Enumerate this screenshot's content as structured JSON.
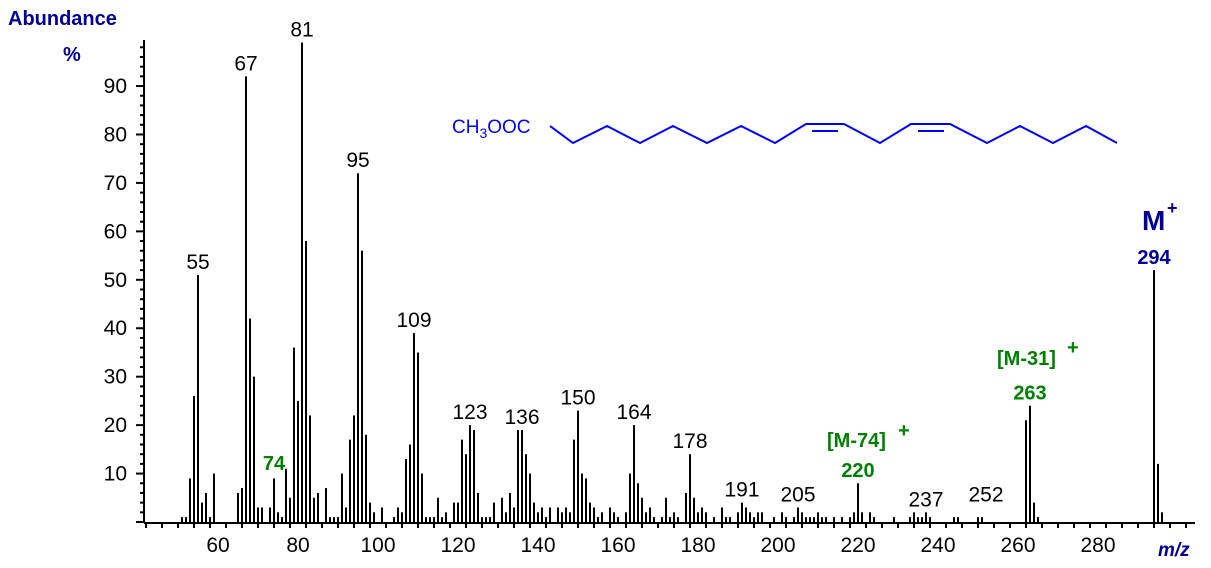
{
  "chart_data": {
    "type": "bar",
    "title": "",
    "xlabel": "m/z",
    "ylabel": "Abundance %",
    "xlim": [
      40,
      300
    ],
    "ylim": [
      0,
      100
    ],
    "x_ticks": [
      60,
      80,
      100,
      120,
      140,
      160,
      180,
      200,
      220,
      240,
      260,
      280
    ],
    "y_ticks": [
      10,
      20,
      30,
      40,
      50,
      60,
      70,
      80,
      90
    ],
    "grid": false,
    "peaks": [
      [
        51,
        1
      ],
      [
        52,
        1
      ],
      [
        53,
        9
      ],
      [
        54,
        26
      ],
      [
        55,
        51
      ],
      [
        56,
        4
      ],
      [
        57,
        6
      ],
      [
        58,
        1
      ],
      [
        59,
        10
      ],
      [
        65,
        6
      ],
      [
        66,
        7
      ],
      [
        67,
        92
      ],
      [
        68,
        42
      ],
      [
        69,
        30
      ],
      [
        70,
        3
      ],
      [
        71,
        3
      ],
      [
        73,
        3
      ],
      [
        74,
        9
      ],
      [
        75,
        2
      ],
      [
        76,
        1
      ],
      [
        77,
        11
      ],
      [
        78,
        5
      ],
      [
        79,
        36
      ],
      [
        80,
        25
      ],
      [
        81,
        99
      ],
      [
        82,
        58
      ],
      [
        83,
        22
      ],
      [
        84,
        5
      ],
      [
        85,
        6
      ],
      [
        87,
        7
      ],
      [
        88,
        1
      ],
      [
        89,
        1
      ],
      [
        90,
        1
      ],
      [
        91,
        10
      ],
      [
        92,
        3
      ],
      [
        93,
        17
      ],
      [
        94,
        22
      ],
      [
        95,
        72
      ],
      [
        96,
        56
      ],
      [
        97,
        18
      ],
      [
        98,
        4
      ],
      [
        99,
        2
      ],
      [
        101,
        3
      ],
      [
        104,
        1
      ],
      [
        105,
        3
      ],
      [
        106,
        2
      ],
      [
        107,
        13
      ],
      [
        108,
        16
      ],
      [
        109,
        39
      ],
      [
        110,
        35
      ],
      [
        111,
        10
      ],
      [
        112,
        1
      ],
      [
        113,
        1
      ],
      [
        114,
        1
      ],
      [
        115,
        5
      ],
      [
        116,
        1
      ],
      [
        117,
        2
      ],
      [
        119,
        4
      ],
      [
        120,
        4
      ],
      [
        121,
        17
      ],
      [
        122,
        14
      ],
      [
        123,
        20
      ],
      [
        124,
        19
      ],
      [
        125,
        6
      ],
      [
        126,
        1
      ],
      [
        127,
        1
      ],
      [
        128,
        1
      ],
      [
        129,
        4
      ],
      [
        131,
        5
      ],
      [
        132,
        2
      ],
      [
        133,
        6
      ],
      [
        134,
        3
      ],
      [
        135,
        19
      ],
      [
        136,
        19
      ],
      [
        137,
        14
      ],
      [
        138,
        10
      ],
      [
        139,
        4
      ],
      [
        140,
        2
      ],
      [
        141,
        3
      ],
      [
        142,
        1
      ],
      [
        143,
        3
      ],
      [
        145,
        3
      ],
      [
        146,
        2
      ],
      [
        147,
        3
      ],
      [
        148,
        2
      ],
      [
        149,
        17
      ],
      [
        150,
        23
      ],
      [
        151,
        10
      ],
      [
        152,
        9
      ],
      [
        153,
        4
      ],
      [
        154,
        3
      ],
      [
        155,
        1
      ],
      [
        156,
        2
      ],
      [
        158,
        3
      ],
      [
        159,
        2
      ],
      [
        160,
        1
      ],
      [
        162,
        2
      ],
      [
        163,
        10
      ],
      [
        164,
        20
      ],
      [
        165,
        8
      ],
      [
        166,
        5
      ],
      [
        167,
        2
      ],
      [
        168,
        3
      ],
      [
        169,
        1
      ],
      [
        171,
        1
      ],
      [
        172,
        5
      ],
      [
        173,
        1
      ],
      [
        174,
        2
      ],
      [
        175,
        1
      ],
      [
        177,
        6
      ],
      [
        178,
        14
      ],
      [
        179,
        5
      ],
      [
        180,
        2
      ],
      [
        181,
        3
      ],
      [
        182,
        2
      ],
      [
        184,
        1
      ],
      [
        186,
        3
      ],
      [
        187,
        1
      ],
      [
        188,
        1
      ],
      [
        190,
        2
      ],
      [
        191,
        4
      ],
      [
        192,
        3
      ],
      [
        193,
        2
      ],
      [
        194,
        1
      ],
      [
        195,
        2
      ],
      [
        196,
        2
      ],
      [
        199,
        1
      ],
      [
        201,
        2
      ],
      [
        202,
        1
      ],
      [
        204,
        1
      ],
      [
        205,
        3
      ],
      [
        206,
        2
      ],
      [
        207,
        1
      ],
      [
        208,
        1
      ],
      [
        209,
        1
      ],
      [
        210,
        2
      ],
      [
        211,
        1
      ],
      [
        212,
        1
      ],
      [
        214,
        1
      ],
      [
        216,
        1
      ],
      [
        218,
        1
      ],
      [
        219,
        2
      ],
      [
        220,
        8
      ],
      [
        221,
        2
      ],
      [
        223,
        2
      ],
      [
        224,
        1
      ],
      [
        229,
        1
      ],
      [
        233,
        1
      ],
      [
        234,
        2
      ],
      [
        235,
        1
      ],
      [
        236,
        1
      ],
      [
        237,
        2
      ],
      [
        238,
        1
      ],
      [
        244,
        1
      ],
      [
        245,
        1
      ],
      [
        250,
        1
      ],
      [
        251,
        1
      ],
      [
        262,
        21
      ],
      [
        263,
        24
      ],
      [
        264,
        4
      ],
      [
        265,
        1
      ],
      [
        294,
        52
      ],
      [
        295,
        12
      ],
      [
        296,
        2
      ]
    ],
    "annotations": [
      {
        "mz": 55,
        "text": "55",
        "color": "#000000"
      },
      {
        "mz": 67,
        "text": "67",
        "color": "#000000"
      },
      {
        "mz": 74,
        "text": "74",
        "color": "#008000"
      },
      {
        "mz": 81,
        "text": "81",
        "color": "#000000"
      },
      {
        "mz": 95,
        "text": "95",
        "color": "#000000"
      },
      {
        "mz": 109,
        "text": "109",
        "color": "#000000"
      },
      {
        "mz": 123,
        "text": "123",
        "color": "#000000"
      },
      {
        "mz": 136,
        "text": "136",
        "color": "#000000"
      },
      {
        "mz": 150,
        "text": "150",
        "color": "#000000"
      },
      {
        "mz": 164,
        "text": "164",
        "color": "#000000"
      },
      {
        "mz": 178,
        "text": "178",
        "color": "#000000"
      },
      {
        "mz": 191,
        "text": "191",
        "color": "#000000"
      },
      {
        "mz": 205,
        "text": "205",
        "color": "#000000"
      },
      {
        "mz": 220,
        "text": "220",
        "label": "[M-74]+",
        "color": "#008000"
      },
      {
        "mz": 237,
        "text": "237",
        "color": "#000000"
      },
      {
        "mz": 252,
        "text": "252",
        "color": "#000000"
      },
      {
        "mz": 263,
        "text": "263",
        "label": "[M-31]+",
        "color": "#008000"
      },
      {
        "mz": 294,
        "text": "294",
        "label": "M+",
        "color": "#000099"
      }
    ]
  },
  "axis": {
    "y_title": "Abundance",
    "y_unit": "%",
    "x_title": "m/z"
  },
  "structure": {
    "formula_prefix": "CH",
    "formula_sub": "3",
    "formula_suffix": "OOC",
    "color": "#0000ff"
  },
  "labels": {
    "m74": "[M-74]",
    "m31": "[M-31]",
    "mplus": "M",
    "plus": "+"
  }
}
